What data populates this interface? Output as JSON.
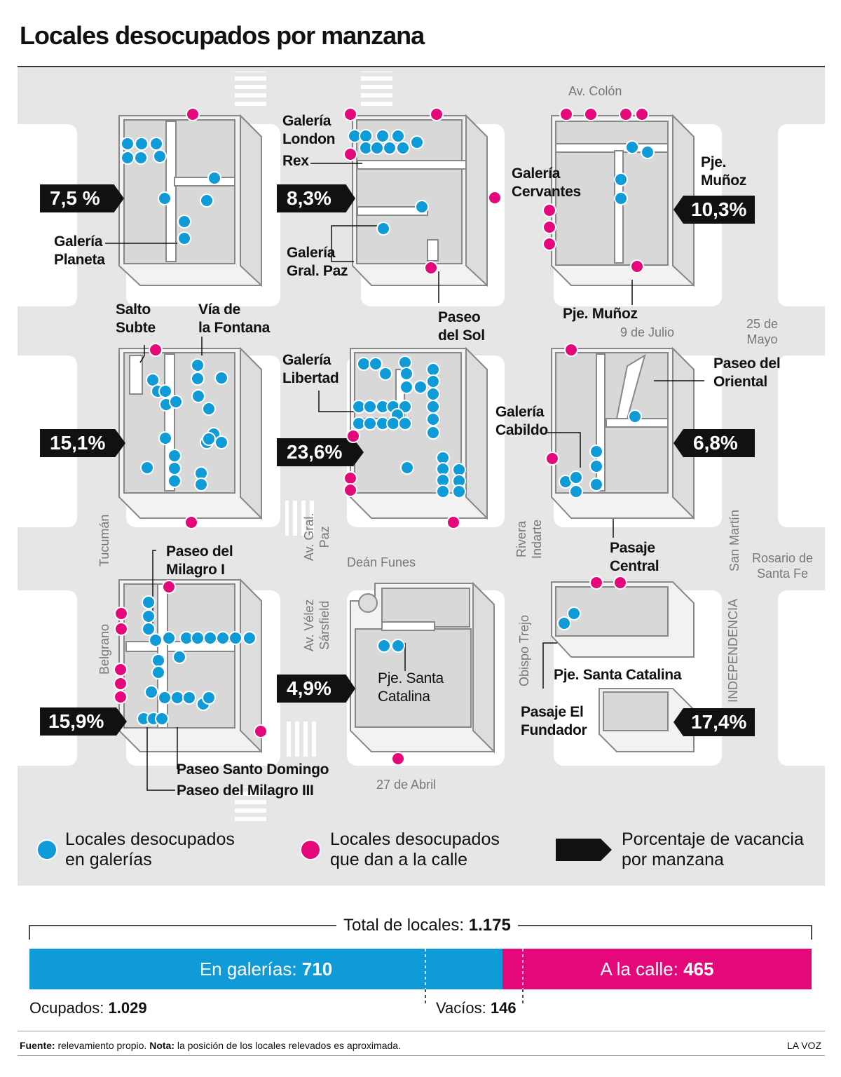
{
  "title": "Locales desocupados por manzana",
  "colors": {
    "galeria": "#0f9ad8",
    "calle": "#e4087a",
    "pct_box": "#111111",
    "map_bg": "#e6e6e6"
  },
  "streets": {
    "av_colon": "Av. Colón",
    "nueve_julio": "9 de Julio",
    "veinticinco_mayo": "25 de\nMayo",
    "dean_funes": "Deán Funes",
    "rosario": "Rosario de\nSanta Fe",
    "veintisiete_abril": "27 de Abril",
    "tucuman": "Tucumán",
    "av_gral_paz": "Av. Gral.\nPaz",
    "rivera_indarte": "Rivera\nIndarte",
    "san_martin": "San Martín",
    "belgrano": "Belgrano",
    "av_velez": "Av. Vélez\nSársfield",
    "obispo_trejo": "Obispo Trejo",
    "independencia": "INDEPENDENCIA"
  },
  "blocks": [
    {
      "pct": "7,5 %",
      "labels": [
        "Galería\nPlaneta"
      ]
    },
    {
      "pct": "8,3%",
      "labels": [
        "Galería\nLondon",
        "Rex",
        "Galería\nGral. Paz",
        "Paseo\ndel Sol"
      ]
    },
    {
      "pct": "10,3%",
      "labels": [
        "Galería\nCervantes",
        "Pje.\nMuñoz",
        "Pje. Muñoz"
      ]
    },
    {
      "pct": "15,1%",
      "labels": [
        "Salto\nSubte",
        "Vía de\nla Fontana"
      ]
    },
    {
      "pct": "23,6%",
      "labels": [
        "Galería\nLibertad"
      ]
    },
    {
      "pct": "6,8%",
      "labels": [
        "Paseo del\nOriental",
        "Galería\nCabildo",
        "Pasaje\nCentral"
      ]
    },
    {
      "pct": "15,9%",
      "labels": [
        "Paseo del\nMilagro I",
        "Paseo Santo Domingo",
        "Paseo del Milagro III"
      ]
    },
    {
      "pct": "4,9%",
      "labels": [
        "Pje. Santa\nCatalina"
      ]
    },
    {
      "pct": "17,4%",
      "labels": [
        "Pje. Santa Catalina",
        "Pasaje El\nFundador"
      ]
    }
  ],
  "legend": {
    "galeria": "Locales desocupados\nen galerías",
    "calle": "Locales desocupados\nque dan a la calle",
    "pct": "Porcentaje de vacancia\npor manzana"
  },
  "totals": {
    "total_label": "Total de locales:",
    "total_value": "1.175",
    "galerias_label": "En galerías:",
    "galerias_value": "710",
    "calle_label": "A la calle:",
    "calle_value": "465",
    "ocupados_label": "Ocupados:",
    "ocupados_value": "1.029",
    "vacios_label": "Vacíos:",
    "vacios_value": "146"
  },
  "footer": {
    "fuente_label": "Fuente:",
    "fuente_text": "relevamiento propio.",
    "nota_label": "Nota:",
    "nota_text": "la posición de los locales relevados es aproximada.",
    "brand": "LA VOZ"
  }
}
